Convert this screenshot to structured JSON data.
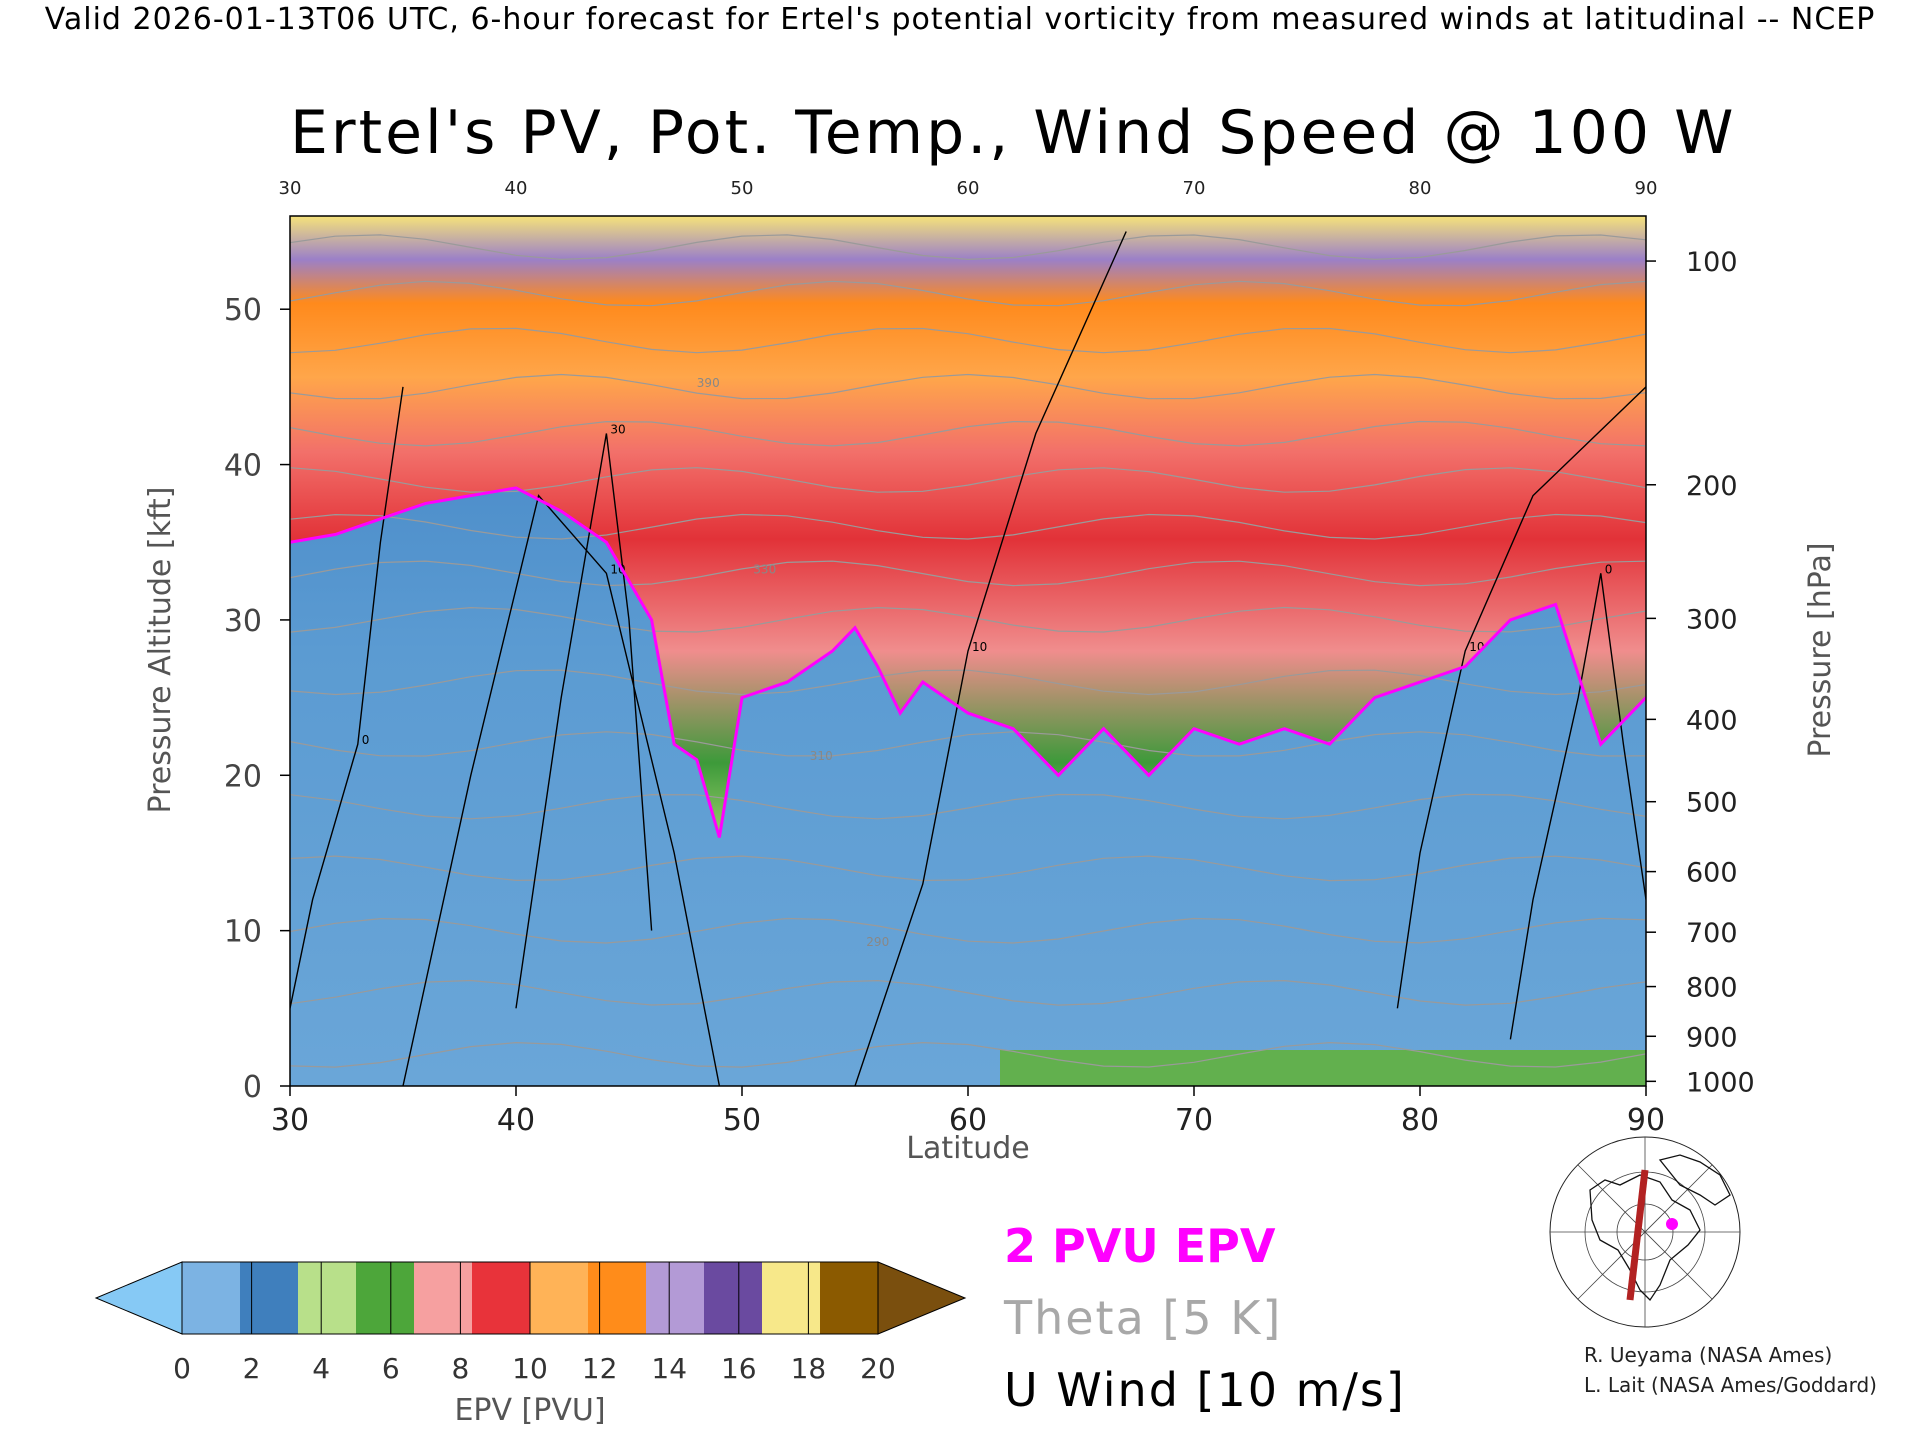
{
  "header": {
    "banner": "Valid 2026-01-13T06 UTC, 6-hour forecast for Ertel's potential vorticity from measured winds at latitudinal -- NCEP",
    "title": "Ertel's PV, Pot. Temp., Wind Speed @ 100 W"
  },
  "chart_data": {
    "type": "heatmap",
    "title": "Ertel's PV, Pot. Temp., Wind Speed @ 100 W",
    "xlabel": "Latitude",
    "ylabel": "Pressure Altitude [kft]",
    "y2label": "Pressure [hPa]",
    "xlim": [
      30,
      90
    ],
    "ylim": [
      0,
      56
    ],
    "x_ticks": [
      30,
      40,
      50,
      60,
      70,
      80,
      90
    ],
    "y_ticks": [
      0,
      10,
      20,
      30,
      40,
      50
    ],
    "pressure_ticks": [
      {
        "label": "100",
        "kft": 53.1
      },
      {
        "label": "200",
        "kft": 38.7
      },
      {
        "label": "300",
        "kft": 30.1
      },
      {
        "label": "400",
        "kft": 23.6
      },
      {
        "label": "500",
        "kft": 18.3
      },
      {
        "label": "600",
        "kft": 13.8
      },
      {
        "label": "700",
        "kft": 9.9
      },
      {
        "label": "800",
        "kft": 6.4
      },
      {
        "label": "900",
        "kft": 3.2
      },
      {
        "label": "1000",
        "kft": 0.3
      }
    ],
    "tropopause_2pvu_kft": [
      {
        "lat": 30,
        "kft": 35
      },
      {
        "lat": 32,
        "kft": 35.5
      },
      {
        "lat": 34,
        "kft": 36.5
      },
      {
        "lat": 36,
        "kft": 37.5
      },
      {
        "lat": 38,
        "kft": 38
      },
      {
        "lat": 40,
        "kft": 38.5
      },
      {
        "lat": 42,
        "kft": 37
      },
      {
        "lat": 44,
        "kft": 35
      },
      {
        "lat": 46,
        "kft": 30
      },
      {
        "lat": 47,
        "kft": 22
      },
      {
        "lat": 48,
        "kft": 21
      },
      {
        "lat": 49,
        "kft": 16
      },
      {
        "lat": 50,
        "kft": 25
      },
      {
        "lat": 52,
        "kft": 26
      },
      {
        "lat": 54,
        "kft": 28
      },
      {
        "lat": 55,
        "kft": 29.5
      },
      {
        "lat": 56,
        "kft": 27
      },
      {
        "lat": 57,
        "kft": 24
      },
      {
        "lat": 58,
        "kft": 26
      },
      {
        "lat": 60,
        "kft": 24
      },
      {
        "lat": 62,
        "kft": 23
      },
      {
        "lat": 64,
        "kft": 20
      },
      {
        "lat": 66,
        "kft": 23
      },
      {
        "lat": 68,
        "kft": 20
      },
      {
        "lat": 70,
        "kft": 23
      },
      {
        "lat": 72,
        "kft": 22
      },
      {
        "lat": 74,
        "kft": 23
      },
      {
        "lat": 76,
        "kft": 22
      },
      {
        "lat": 78,
        "kft": 25
      },
      {
        "lat": 80,
        "kft": 26
      },
      {
        "lat": 82,
        "kft": 27
      },
      {
        "lat": 84,
        "kft": 30
      },
      {
        "lat": 86,
        "kft": 31
      },
      {
        "lat": 88,
        "kft": 22
      },
      {
        "lat": 90,
        "kft": 25
      }
    ],
    "wind_contours": [
      {
        "label": "10",
        "points": [
          [
            35,
            0
          ],
          [
            38,
            20
          ],
          [
            41,
            38
          ],
          [
            44,
            33
          ],
          [
            47,
            15
          ],
          [
            49,
            0
          ]
        ]
      },
      {
        "label": "10",
        "points": [
          [
            55,
            0
          ],
          [
            58,
            13
          ],
          [
            60,
            28
          ],
          [
            63,
            42
          ],
          [
            67,
            55
          ]
        ]
      },
      {
        "label": "10",
        "points": [
          [
            79,
            5
          ],
          [
            80,
            15
          ],
          [
            82,
            28
          ],
          [
            85,
            38
          ],
          [
            90,
            45
          ]
        ]
      },
      {
        "label": "30",
        "points": [
          [
            40,
            5
          ],
          [
            42,
            25
          ],
          [
            44,
            42
          ],
          [
            45,
            30
          ],
          [
            46,
            10
          ]
        ]
      },
      {
        "label": "0",
        "points": [
          [
            30,
            5
          ],
          [
            31,
            12
          ],
          [
            33,
            22
          ],
          [
            34,
            35
          ],
          [
            35,
            45
          ]
        ]
      },
      {
        "label": "0",
        "points": [
          [
            84,
            3
          ],
          [
            85,
            12
          ],
          [
            87,
            25
          ],
          [
            88,
            33
          ],
          [
            89,
            22
          ],
          [
            90,
            12
          ]
        ]
      }
    ],
    "theta_lines_kft": [
      2,
      6,
      10,
      14,
      18,
      22,
      26,
      30,
      33,
      36,
      39,
      42,
      45,
      48,
      51,
      54
    ],
    "theta_labels": [
      "390",
      "330",
      "310",
      "290"
    ],
    "colorbar": {
      "label": "EPV [PVU]",
      "ticks": [
        "0",
        "2",
        "4",
        "6",
        "8",
        "10",
        "12",
        "14",
        "16",
        "18",
        "20"
      ],
      "colors": [
        "#7cb3e3",
        "#3f7fbd",
        "#b8e08a",
        "#4da63a",
        "#f6a0a0",
        "#e8333a",
        "#ffb357",
        "#ff8c1a",
        "#b39ad6",
        "#6a4aa0",
        "#f7e88a",
        "#8b5a00"
      ],
      "under_color": "#86c9f5",
      "over_color": "#7a4f0e"
    },
    "legend": {
      "epv": "2 PVU EPV",
      "theta": "Theta [5 K]",
      "wind": "U Wind [10 m/s]"
    },
    "colors": {
      "troposphere": "#5a9ad0",
      "deep_blue": "#2f6fb2",
      "tropopause": "#ff00ff",
      "wind": "#000000",
      "theta": "#9a9a9a"
    }
  },
  "credits": {
    "line1": "R. Ueyama (NASA Ames)",
    "line2": "L. Lait (NASA Ames/Goddard)"
  }
}
